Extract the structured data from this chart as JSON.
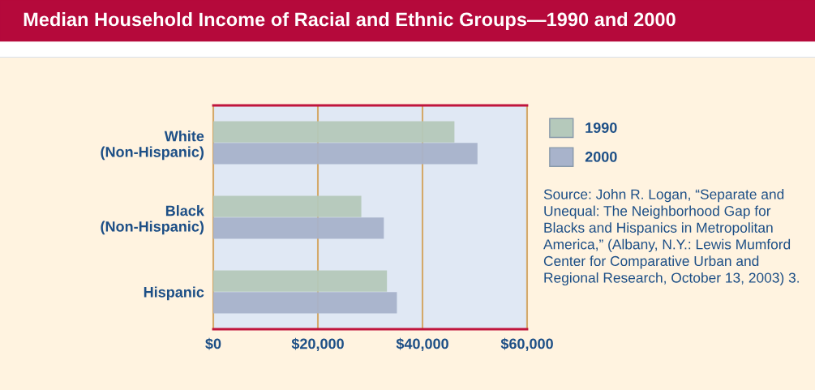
{
  "chart_data": {
    "type": "bar",
    "orientation": "horizontal",
    "title": "Median Household Income of Racial and Ethnic Groups—1990 and 2000",
    "categories": [
      "White\n(Non-Hispanic)",
      "Black\n(Non-Hispanic)",
      "Hispanic"
    ],
    "series": [
      {
        "name": "1990",
        "color": "#b5c9bb",
        "values": [
          46000,
          28200,
          33100
        ]
      },
      {
        "name": "2000",
        "color": "#a8b3cb",
        "values": [
          50400,
          32500,
          35000
        ]
      }
    ],
    "xlim": [
      0,
      60000
    ],
    "xticks": [
      {
        "value": 0,
        "label": "$0"
      },
      {
        "value": 20000,
        "label": "$20,000"
      },
      {
        "value": 40000,
        "label": "$40,000"
      },
      {
        "value": 60000,
        "label": "$60,000"
      }
    ],
    "grid": "x",
    "legend": "right",
    "annotations": [
      "Source: John R. Logan, “Separate and Unequal: The Neighborhood Gap for Blacks and Hispanics in Metropolitan America,” (Albany, N.Y.: Lewis Mumford Center for Comparative Urban and Regional Research, October 13, 2003) 3."
    ]
  }
}
